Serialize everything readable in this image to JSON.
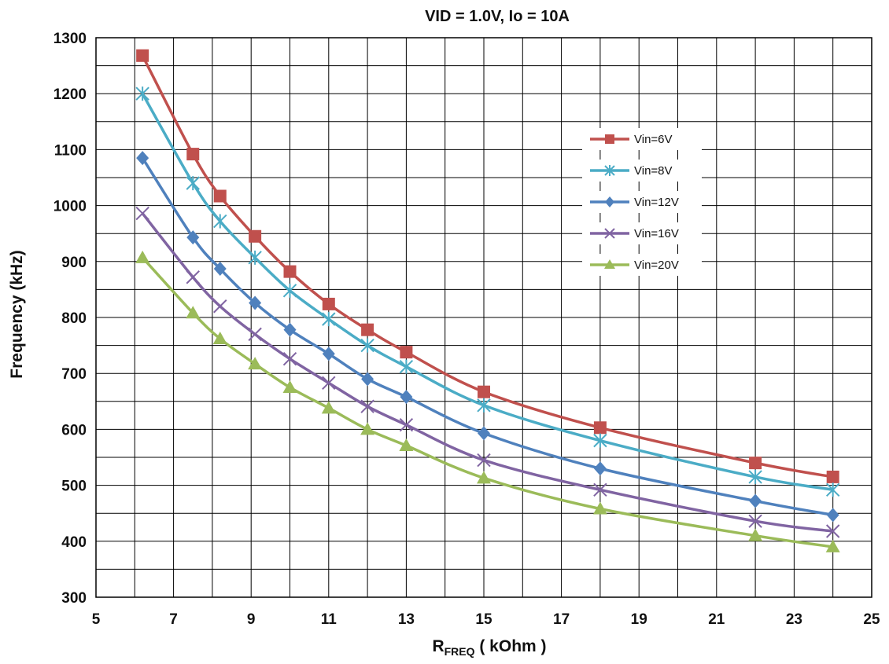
{
  "chart_data": {
    "type": "line",
    "title": "VID = 1.0V, Io = 10A",
    "xlabel_main": "R",
    "xlabel_sub": "FREQ",
    "xlabel_rest": " ( kOhm )",
    "ylabel": "Frequency (kHz)",
    "xlim": [
      5,
      25
    ],
    "ylim": [
      300,
      1300
    ],
    "xticks": [
      5,
      7,
      9,
      11,
      13,
      15,
      17,
      19,
      21,
      23,
      25
    ],
    "yticks": [
      300,
      400,
      500,
      600,
      700,
      800,
      900,
      1000,
      1100,
      1200,
      1300
    ],
    "grid": true,
    "legend_position": "right-upper",
    "x": [
      6.2,
      7.5,
      8.2,
      9.1,
      10,
      11,
      12,
      13,
      15,
      18,
      22,
      24
    ],
    "series": [
      {
        "name": "Vin=6V",
        "color": "#c0504d",
        "marker": "square",
        "values": [
          1268,
          1092,
          1017,
          945,
          882,
          824,
          778,
          738,
          667,
          603,
          540,
          515
        ]
      },
      {
        "name": "Vin=8V",
        "color": "#4bacc6",
        "marker": "star",
        "values": [
          1200,
          1040,
          972,
          907,
          848,
          797,
          750,
          712,
          643,
          580,
          515,
          492
        ]
      },
      {
        "name": "Vin=12V",
        "color": "#4f81bd",
        "marker": "diamond",
        "values": [
          1085,
          943,
          887,
          826,
          778,
          735,
          690,
          658,
          593,
          530,
          472,
          447
        ]
      },
      {
        "name": "Vin=16V",
        "color": "#8064a2",
        "marker": "x",
        "values": [
          986,
          872,
          820,
          770,
          726,
          683,
          641,
          608,
          545,
          492,
          436,
          418
        ]
      },
      {
        "name": "Vin=20V",
        "color": "#9bbb59",
        "marker": "triangle",
        "values": [
          907,
          808,
          762,
          717,
          675,
          638,
          600,
          571,
          513,
          458,
          410,
          390
        ]
      }
    ]
  }
}
